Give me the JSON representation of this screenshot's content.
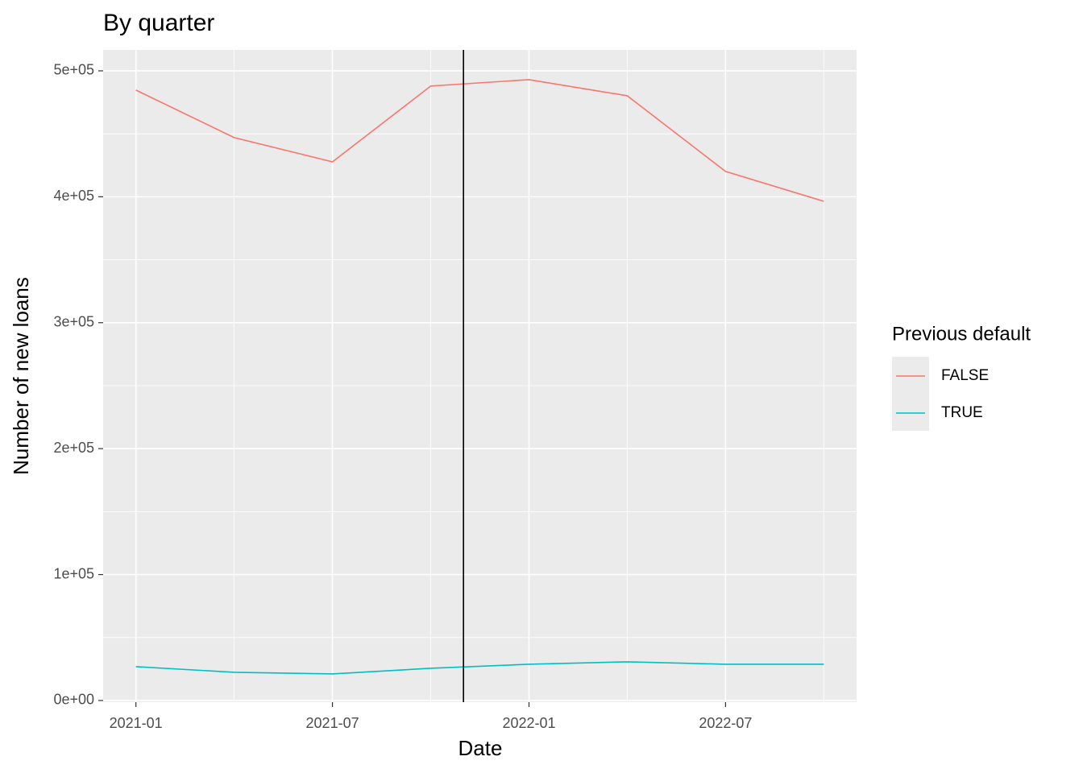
{
  "chart_data": {
    "type": "line",
    "title": "By quarter",
    "x_label": "Date",
    "y_label": "Number of new loans",
    "x": [
      "2021-01",
      "2021-04",
      "2021-07",
      "2021-10",
      "2022-01",
      "2022-04",
      "2022-07",
      "2022-10"
    ],
    "series": [
      {
        "name": "FALSE",
        "color": "#F8766D",
        "values": [
          484700,
          447000,
          427700,
          487900,
          493000,
          480200,
          420100,
          396400
        ]
      },
      {
        "name": "TRUE",
        "color": "#00BFC4",
        "values": [
          26900,
          22400,
          21100,
          25600,
          28800,
          30700,
          28800,
          28800
        ]
      }
    ],
    "xlim": [
      "2020-12",
      "2022-11"
    ],
    "xticks": [
      "2021-01",
      "2021-07",
      "2022-01",
      "2022-07"
    ],
    "ylim": [
      -1300,
      516600
    ],
    "yticks": [
      {
        "value": 0,
        "label": "0e+00"
      },
      {
        "value": 100000,
        "label": "1e+05"
      },
      {
        "value": 200000,
        "label": "2e+05"
      },
      {
        "value": 300000,
        "label": "3e+05"
      },
      {
        "value": 400000,
        "label": "4e+05"
      },
      {
        "value": 500000,
        "label": "5e+05"
      }
    ],
    "vline": {
      "x": "2021-11",
      "color": "#000000"
    },
    "legend_title": "Previous default",
    "legend_position": "right",
    "grid": true
  }
}
